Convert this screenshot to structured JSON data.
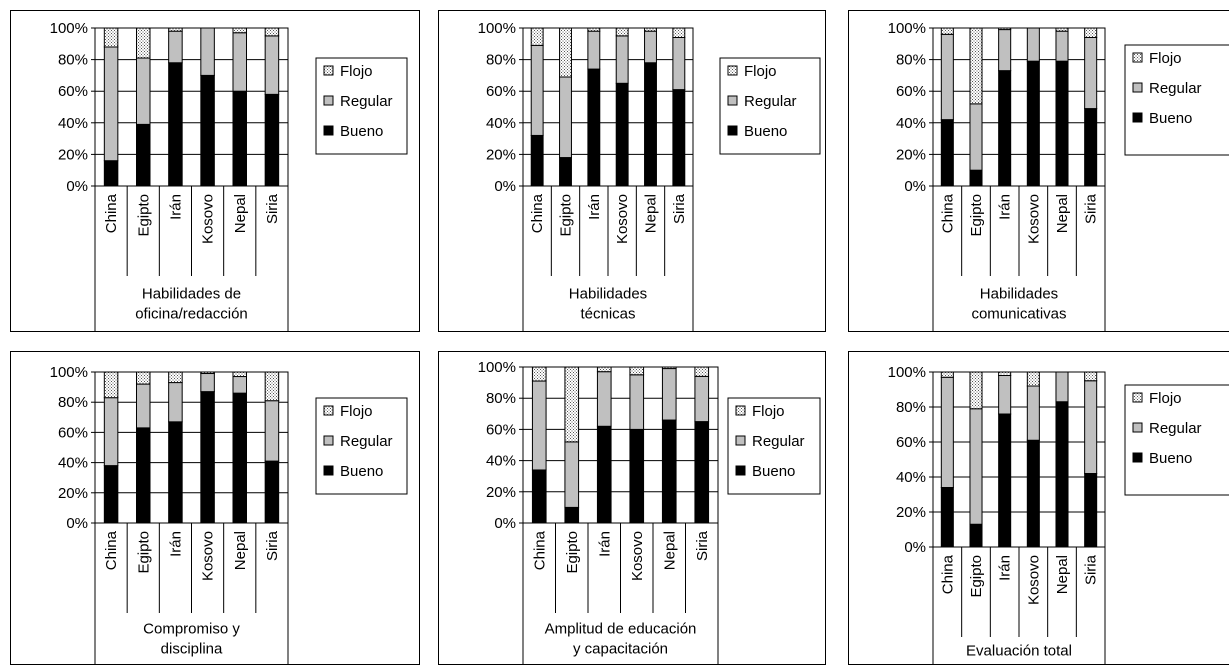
{
  "chart_data": [
    {
      "type": "bar",
      "stacked": "percent",
      "categories": [
        "China",
        "Egipto",
        "Irán",
        "Kosovo",
        "Nepal",
        "Siria"
      ],
      "group_label": [
        "Habilidades de",
        "oficina/redacción"
      ],
      "yticks": [
        "0%",
        "20%",
        "40%",
        "60%",
        "80%",
        "100%"
      ],
      "ylim": [
        0,
        100
      ],
      "legend": [
        "Flojo",
        "Regular",
        "Bueno"
      ],
      "series": [
        {
          "name": "Bueno",
          "values": [
            16,
            39,
            78,
            70,
            60,
            58
          ]
        },
        {
          "name": "Regular",
          "values": [
            72,
            42,
            20,
            30,
            37,
            37
          ]
        },
        {
          "name": "Flojo",
          "values": [
            12,
            19,
            2,
            0,
            3,
            5
          ]
        }
      ]
    },
    {
      "type": "bar",
      "stacked": "percent",
      "categories": [
        "China",
        "Egipto",
        "Irán",
        "Kosovo",
        "Nepal",
        "Siria"
      ],
      "group_label": [
        "Habilidades",
        "técnicas"
      ],
      "yticks": [
        "0%",
        "20%",
        "40%",
        "60%",
        "80%",
        "100%"
      ],
      "ylim": [
        0,
        100
      ],
      "legend": [
        "Flojo",
        "Regular",
        "Bueno"
      ],
      "series": [
        {
          "name": "Bueno",
          "values": [
            32,
            18,
            74,
            65,
            78,
            61
          ]
        },
        {
          "name": "Regular",
          "values": [
            57,
            51,
            24,
            30,
            20,
            33
          ]
        },
        {
          "name": "Flojo",
          "values": [
            11,
            31,
            2,
            5,
            2,
            6
          ]
        }
      ]
    },
    {
      "type": "bar",
      "stacked": "percent",
      "categories": [
        "China",
        "Egipto",
        "Irán",
        "Kosovo",
        "Nepal",
        "Siria"
      ],
      "group_label": [
        "Habilidades",
        "comunicativas"
      ],
      "yticks": [
        "0%",
        "20%",
        "40%",
        "60%",
        "80%",
        "100%"
      ],
      "ylim": [
        0,
        100
      ],
      "legend": [
        "Flojo",
        "Regular",
        "Bueno"
      ],
      "series": [
        {
          "name": "Bueno",
          "values": [
            42,
            10,
            73,
            79,
            79,
            49
          ]
        },
        {
          "name": "Regular",
          "values": [
            54,
            42,
            26,
            21,
            19,
            45
          ]
        },
        {
          "name": "Flojo",
          "values": [
            4,
            48,
            1,
            0,
            2,
            6
          ]
        }
      ]
    },
    {
      "type": "bar",
      "stacked": "percent",
      "categories": [
        "China",
        "Egipto",
        "Irán",
        "Kosovo",
        "Nepal",
        "Siria"
      ],
      "group_label": [
        "Compromiso y",
        "disciplina"
      ],
      "yticks": [
        "0%",
        "20%",
        "40%",
        "60%",
        "80%",
        "100%"
      ],
      "ylim": [
        0,
        100
      ],
      "legend": [
        "Flojo",
        "Regular",
        "Bueno"
      ],
      "series": [
        {
          "name": "Bueno",
          "values": [
            38,
            63,
            67,
            87,
            86,
            41
          ]
        },
        {
          "name": "Regular",
          "values": [
            45,
            29,
            26,
            12,
            11,
            40
          ]
        },
        {
          "name": "Flojo",
          "values": [
            17,
            8,
            7,
            1,
            3,
            19
          ]
        }
      ]
    },
    {
      "type": "bar",
      "stacked": "percent",
      "categories": [
        "China",
        "Egipto",
        "Irán",
        "Kosovo",
        "Nepal",
        "Siria"
      ],
      "group_label": [
        "Amplitud de educación",
        "y capacitación"
      ],
      "yticks": [
        "0%",
        "20%",
        "40%",
        "60%",
        "80%",
        "100%"
      ],
      "ylim": [
        0,
        100
      ],
      "legend": [
        "Flojo",
        "Regular",
        "Bueno"
      ],
      "series": [
        {
          "name": "Bueno",
          "values": [
            34,
            10,
            62,
            60,
            66,
            65
          ]
        },
        {
          "name": "Regular",
          "values": [
            57,
            42,
            35,
            35,
            33,
            29
          ]
        },
        {
          "name": "Flojo",
          "values": [
            9,
            48,
            3,
            5,
            1,
            6
          ]
        }
      ]
    },
    {
      "type": "bar",
      "stacked": "percent",
      "categories": [
        "China",
        "Egipto",
        "Irán",
        "Kosovo",
        "Nepal",
        "Siria"
      ],
      "group_label": [
        "Evaluación total"
      ],
      "yticks": [
        "0%",
        "20%",
        "40%",
        "60%",
        "80%",
        "100%"
      ],
      "ylim": [
        0,
        100
      ],
      "legend": [
        "Flojo",
        "Regular",
        "Bueno"
      ],
      "series": [
        {
          "name": "Bueno",
          "values": [
            34,
            13,
            76,
            61,
            83,
            42
          ]
        },
        {
          "name": "Regular",
          "values": [
            63,
            66,
            22,
            31,
            17,
            53
          ]
        },
        {
          "name": "Flojo",
          "values": [
            3,
            21,
            2,
            8,
            0,
            5
          ]
        }
      ]
    }
  ]
}
